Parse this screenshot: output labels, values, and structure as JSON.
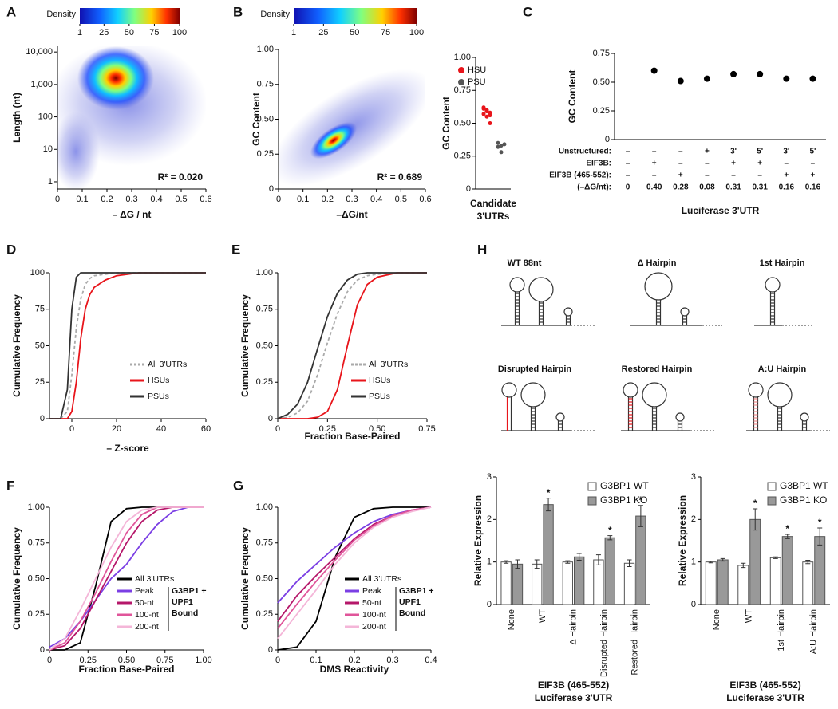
{
  "chart_data": [
    {
      "type": "density",
      "label": "A",
      "colorbar": {
        "title": "Density",
        "lim": [
          1,
          100
        ],
        "ticks": [
          1,
          25,
          50,
          75,
          100
        ]
      },
      "xlabel": "– ΔG / nt",
      "ylabel": "Length (nt)",
      "xlim": [
        0,
        0.6
      ],
      "xticks": [
        0,
        0.1,
        0.2,
        0.3,
        0.4,
        0.5,
        0.6
      ],
      "ylim": [
        0.6,
        15000
      ],
      "log_y": true,
      "yticks": [
        1,
        10,
        100,
        {
          "value": 1000,
          "label": "1,000"
        },
        {
          "value": 10000,
          "label": "10,000"
        }
      ],
      "annotation": "R² = 0.020"
    },
    {
      "type": "density",
      "label": "B",
      "colorbar": {
        "title": "Density",
        "lim": [
          1,
          100
        ],
        "ticks": [
          1,
          25,
          50,
          75,
          100
        ]
      },
      "xlabel": "–ΔG/nt",
      "ylabel": "GC Content",
      "xlim": [
        0,
        0.6
      ],
      "xticks": [
        0,
        0.1,
        0.2,
        0.3,
        0.4,
        0.5,
        0.6
      ],
      "ylim": [
        0,
        1
      ],
      "yticks": [
        0,
        0.25,
        {
          "value": 0.5,
          "label": "0.50"
        },
        0.75,
        {
          "value": 1,
          "label": "1.00"
        }
      ],
      "annotation": "R² = 0.689"
    },
    {
      "type": "strip",
      "ylabel": "GC Content",
      "xlabel": [
        "Candidate",
        "3'UTRs"
      ],
      "ylim": [
        0,
        1
      ],
      "yticks": [
        0,
        0.25,
        {
          "value": 0.5,
          "label": "0.50"
        },
        0.75,
        {
          "value": 1,
          "label": "1.00"
        }
      ],
      "series": [
        {
          "name": "HSU",
          "color": "#e8151b",
          "values": [
            0.62,
            0.6,
            0.58,
            0.61,
            0.55,
            0.5,
            0.57,
            0.59,
            0.56
          ]
        },
        {
          "name": "PSU",
          "color": "#555555",
          "values": [
            0.35,
            0.33,
            0.34,
            0.32,
            0.28
          ]
        }
      ]
    },
    {
      "type": "dot",
      "label": "C",
      "ylabel": "GC Content",
      "xlabel": "Luciferase 3'UTR",
      "ylim": [
        0,
        0.75
      ],
      "yticks": [
        0,
        0.25,
        {
          "value": 0.5,
          "label": "0.50"
        },
        0.75
      ],
      "color": "#000000",
      "values": [
        null,
        0.6,
        0.51,
        0.53,
        0.57,
        0.57,
        0.53,
        0.53
      ],
      "table": [
        {
          "label": "Unstructured:",
          "cells": [
            "–",
            "–",
            "–",
            "+",
            "3'",
            "5'",
            "3'",
            "5'"
          ]
        },
        {
          "label": "EIF3B:",
          "cells": [
            "–",
            "+",
            "–",
            "–",
            "+",
            "+",
            "–",
            "–"
          ]
        },
        {
          "label": "EIF3B (465-552):",
          "cells": [
            "–",
            "–",
            "+",
            "–",
            "–",
            "–",
            "+",
            "+"
          ]
        },
        {
          "label": "(–ΔG/nt):",
          "cells": [
            "0",
            "0.40",
            "0.28",
            "0.08",
            "0.31",
            "0.31",
            "0.16",
            "0.16"
          ]
        }
      ]
    },
    {
      "type": "line",
      "label": "D",
      "xlabel": "– Z-score",
      "ylabel": "Cumulative Frequency",
      "xlim": [
        -10,
        60
      ],
      "xticks": [
        0,
        20,
        40,
        60
      ],
      "ylim": [
        0,
        100
      ],
      "yticks": [
        0,
        25,
        50,
        75,
        100
      ],
      "legend": "lower right",
      "x": [
        -10,
        -5,
        -2,
        0,
        2,
        4,
        6,
        8,
        10,
        15,
        20,
        30,
        40,
        60
      ],
      "series": [
        {
          "name": "All 3'UTRs",
          "color": "#aaaaaa",
          "dash": true,
          "values": [
            0,
            0,
            5,
            30,
            62,
            82,
            92,
            96,
            98,
            99,
            100,
            100,
            100,
            100
          ]
        },
        {
          "name": "HSUs",
          "color": "#e8151b",
          "values": [
            0,
            0,
            0,
            5,
            25,
            55,
            75,
            85,
            90,
            95,
            98,
            100,
            100,
            100
          ]
        },
        {
          "name": "PSUs",
          "color": "#333333",
          "values": [
            0,
            0,
            20,
            75,
            97,
            100,
            100,
            100,
            100,
            100,
            100,
            100,
            100,
            100
          ]
        }
      ]
    },
    {
      "type": "line",
      "label": "E",
      "xlabel": "Fraction Base-Paired",
      "ylabel": "Cumulative Frequency",
      "xlim": [
        0,
        0.75
      ],
      "xticks": [
        0,
        0.25,
        {
          "value": 0.5,
          "label": "0.50"
        },
        0.75
      ],
      "ylim": [
        0,
        1
      ],
      "yticks": [
        0,
        0.25,
        {
          "value": 0.5,
          "label": "0.50"
        },
        0.75,
        {
          "value": 1,
          "label": "1.00"
        }
      ],
      "legend": "lower right",
      "x": [
        0,
        0.05,
        0.1,
        0.15,
        0.2,
        0.25,
        0.3,
        0.35,
        0.4,
        0.45,
        0.5,
        0.6,
        0.75
      ],
      "series": [
        {
          "name": "All 3'UTRs",
          "color": "#aaaaaa",
          "dash": true,
          "values": [
            0,
            0.01,
            0.04,
            0.12,
            0.3,
            0.52,
            0.72,
            0.87,
            0.95,
            0.98,
            0.99,
            1,
            1
          ]
        },
        {
          "name": "HSUs",
          "color": "#e8151b",
          "values": [
            0,
            0,
            0,
            0,
            0.01,
            0.05,
            0.2,
            0.5,
            0.78,
            0.92,
            0.97,
            1,
            1
          ]
        },
        {
          "name": "PSUs",
          "color": "#333333",
          "values": [
            0,
            0.03,
            0.1,
            0.25,
            0.48,
            0.7,
            0.86,
            0.95,
            0.99,
            1,
            1,
            1,
            1
          ]
        }
      ]
    },
    {
      "type": "line",
      "label": "F",
      "xlabel": "Fraction Base-Paired",
      "ylabel": "Cumulative Frequency",
      "xlim": [
        0,
        1
      ],
      "xticks": [
        0,
        0.25,
        {
          "value": 0.5,
          "label": "0.50"
        },
        0.75,
        {
          "value": 1,
          "label": "1.00"
        }
      ],
      "ylim": [
        0,
        1
      ],
      "yticks": [
        0,
        0.25,
        {
          "value": 0.5,
          "label": "0.50"
        },
        0.75,
        {
          "value": 1,
          "label": "1.00"
        }
      ],
      "legend": "lower right",
      "legend_group_label": [
        "G3BP1 +",
        "UPF1",
        "Bound"
      ],
      "x": [
        0,
        0.1,
        0.2,
        0.3,
        0.4,
        0.5,
        0.6,
        0.7,
        0.8,
        0.9,
        1
      ],
      "series": [
        {
          "name": "All 3'UTRs",
          "color": "#000000",
          "values": [
            0,
            0,
            0.05,
            0.45,
            0.9,
            0.99,
            1,
            1,
            1,
            1,
            1
          ]
        },
        {
          "name": "Peak",
          "color": "#7b3fe4",
          "values": [
            0.02,
            0.08,
            0.2,
            0.35,
            0.5,
            0.6,
            0.75,
            0.88,
            0.97,
            1,
            1
          ]
        },
        {
          "name": "50-nt",
          "color": "#b5176a",
          "values": [
            0,
            0.03,
            0.15,
            0.35,
            0.55,
            0.75,
            0.9,
            0.98,
            1,
            1,
            1
          ]
        },
        {
          "name": "100-nt",
          "color": "#e0559a",
          "values": [
            0,
            0.05,
            0.2,
            0.4,
            0.62,
            0.82,
            0.95,
            1,
            1,
            1,
            1
          ]
        },
        {
          "name": "200-nt",
          "color": "#f4b6d8",
          "values": [
            0,
            0.08,
            0.28,
            0.5,
            0.72,
            0.9,
            0.98,
            1,
            1,
            1,
            1
          ]
        }
      ]
    },
    {
      "type": "line",
      "label": "G",
      "xlabel": "DMS Reactivity",
      "ylabel": "Cumulative Frequency",
      "xlim": [
        0,
        0.4
      ],
      "xticks": [
        0,
        0.1,
        0.2,
        0.3,
        0.4
      ],
      "ylim": [
        0,
        1
      ],
      "yticks": [
        0,
        0.25,
        {
          "value": 0.5,
          "label": "0.50"
        },
        0.75,
        {
          "value": 1,
          "label": "1.00"
        }
      ],
      "legend": "lower right",
      "legend_group_label": [
        "G3BP1 +",
        "UPF1",
        "Bound"
      ],
      "x": [
        0,
        0.05,
        0.1,
        0.15,
        0.2,
        0.25,
        0.3,
        0.35,
        0.4
      ],
      "series": [
        {
          "name": "All 3'UTRs",
          "color": "#000000",
          "values": [
            0,
            0.02,
            0.2,
            0.65,
            0.93,
            0.99,
            1,
            1,
            1
          ]
        },
        {
          "name": "Peak",
          "color": "#7b3fe4",
          "values": [
            0.33,
            0.48,
            0.6,
            0.72,
            0.82,
            0.9,
            0.95,
            0.98,
            1
          ]
        },
        {
          "name": "50-nt",
          "color": "#b5176a",
          "values": [
            0.2,
            0.38,
            0.52,
            0.65,
            0.78,
            0.88,
            0.94,
            0.98,
            1
          ]
        },
        {
          "name": "100-nt",
          "color": "#e0559a",
          "values": [
            0.15,
            0.32,
            0.48,
            0.63,
            0.77,
            0.87,
            0.94,
            0.98,
            1
          ]
        },
        {
          "name": "200-nt",
          "color": "#f4b6d8",
          "values": [
            0.08,
            0.25,
            0.42,
            0.6,
            0.75,
            0.86,
            0.93,
            0.97,
            1
          ]
        }
      ]
    },
    {
      "type": "bar",
      "ylabel": "Relative Expression",
      "xlabel": [
        "EIF3B (465-552)",
        "Luciferase 3'UTR"
      ],
      "categories": [
        "None",
        "WT",
        "Δ Hairpin",
        "Disrupted Hairpin",
        "Restored Hairpin"
      ],
      "ylim": [
        0,
        3
      ],
      "yticks": [
        0,
        1,
        2,
        3
      ],
      "legend": "upper right",
      "series": [
        {
          "name": "G3BP1 WT",
          "color": "#ffffff",
          "values": [
            1.0,
            0.95,
            1.0,
            1.05,
            0.97
          ],
          "errors": [
            0.03,
            0.1,
            0.03,
            0.12,
            0.08
          ]
        },
        {
          "name": "G3BP1 KO",
          "color": "#999999",
          "values": [
            0.95,
            2.35,
            1.12,
            1.57,
            2.08
          ],
          "errors": [
            0.1,
            0.15,
            0.08,
            0.05,
            0.25
          ],
          "markers": [
            null,
            "*",
            null,
            "*",
            "*"
          ]
        }
      ]
    },
    {
      "type": "bar",
      "ylabel": "Relative Expression",
      "xlabel": [
        "EIF3B (465-552)",
        "Luciferase 3'UTR"
      ],
      "categories": [
        "None",
        "WT",
        "1st Hairpin",
        "A:U Hairpin"
      ],
      "ylim": [
        0,
        3
      ],
      "yticks": [
        0,
        1,
        2,
        3
      ],
      "legend": "upper right",
      "series": [
        {
          "name": "G3BP1 WT",
          "color": "#ffffff",
          "values": [
            1.0,
            0.92,
            1.1,
            1.0
          ],
          "errors": [
            0.02,
            0.05,
            0.02,
            0.04
          ]
        },
        {
          "name": "G3BP1 KO",
          "color": "#999999",
          "values": [
            1.05,
            2.0,
            1.6,
            1.6
          ],
          "errors": [
            0.03,
            0.25,
            0.05,
            0.2
          ],
          "markers": [
            null,
            "*",
            "*",
            "*"
          ]
        }
      ]
    }
  ],
  "hairpins": {
    "label": "H",
    "titles": [
      "WT 88nt",
      "Δ Hairpin",
      "1st Hairpin",
      "Disrupted Hairpin",
      "Restored Hairpin",
      "A:U Hairpin"
    ]
  }
}
